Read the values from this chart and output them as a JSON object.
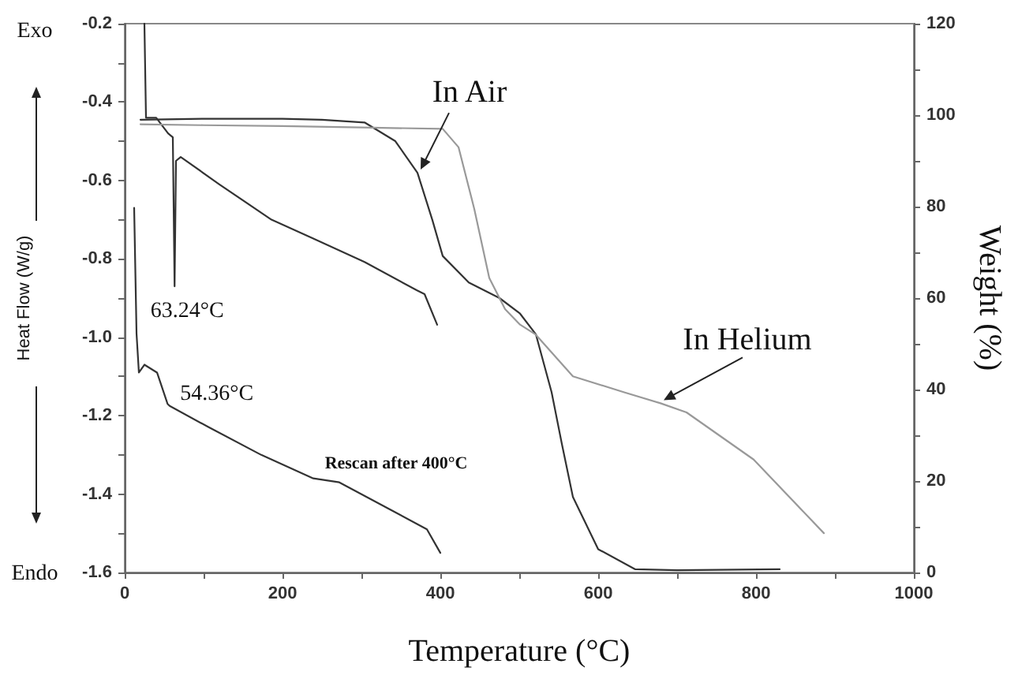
{
  "chart_data": {
    "type": "line",
    "xlabel": "Temperature (°C)",
    "ylabel": "Heat Flow (W/g)",
    "y2label": "Weight (%)",
    "annotations": [
      "Exo",
      "Endo",
      {
        "text": "63.24°C",
        "x": 63.24,
        "y": -0.87
      },
      {
        "text": "54.36°C",
        "x": 54.36,
        "y": -1.17
      }
    ],
    "series": [
      {
        "color": "#333333",
        "x": [
          25,
          27,
          40,
          55,
          61,
          63.24,
          65,
          71,
          120,
          186,
          239,
          304,
          370,
          380,
          396
        ],
        "values": [
          -0.2,
          -0.44,
          -0.44,
          -0.48,
          -0.49,
          -0.87,
          -0.55,
          -0.54,
          -0.61,
          -0.7,
          -0.748,
          -0.808,
          -0.88,
          -0.89,
          -0.968
        ]
      },
      {
        "name": "Rescan after 400°C",
        "color": "#333333",
        "x": [
          12,
          15,
          18,
          25,
          41,
          54.36,
          57,
          107,
          173,
          239,
          272,
          337,
          383,
          400
        ],
        "values": [
          -0.67,
          -0.99,
          -1.09,
          -1.07,
          -1.09,
          -1.17,
          -1.175,
          -1.23,
          -1.3,
          -1.36,
          -1.37,
          -1.44,
          -1.49,
          -1.55
        ]
      },
      {
        "name": "In Air",
        "color": "#333333",
        "axis": "y2",
        "x": [
          20,
          100,
          200,
          250,
          304,
          343,
          371,
          390,
          403,
          436,
          475,
          501,
          521,
          541,
          554,
          568,
          600,
          647,
          700,
          830
        ],
        "values": [
          99,
          99.2,
          99.2,
          99,
          98.4,
          94.3,
          87.4,
          77,
          69.2,
          63.4,
          60,
          56.6,
          52.1,
          39.4,
          28.1,
          16.5,
          5.1,
          0.7,
          0.5,
          0.7
        ]
      },
      {
        "name": "In Helium",
        "color": "#999999",
        "axis": "y2",
        "x": [
          20,
          100,
          200,
          300,
          403,
          423,
          443,
          462,
          482,
          501,
          521,
          568,
          633,
          679,
          712,
          797,
          886
        ],
        "values": [
          98,
          97.8,
          97.6,
          97.3,
          97,
          93,
          79.5,
          64.4,
          57.6,
          54.2,
          52,
          42.9,
          39.4,
          37,
          35,
          24.7,
          8.6
        ]
      }
    ],
    "xlim": [
      0,
      1000
    ],
    "xticks": [
      0,
      {
        "value": 100,
        "label": null
      },
      200,
      {
        "value": 300,
        "label": null
      },
      400,
      {
        "value": 500,
        "label": null
      },
      600,
      {
        "value": 700,
        "label": null
      },
      800,
      {
        "value": 900,
        "label": null
      },
      1000
    ],
    "ylim": [
      -1.6,
      -0.2
    ],
    "yticks": [
      {
        "value": -1.6,
        "label": "-1.6"
      },
      {
        "value": -1.5,
        "label": null
      },
      {
        "value": -1.4,
        "label": "-1.4"
      },
      {
        "value": -1.3,
        "label": null
      },
      {
        "value": -1.2,
        "label": "-1.2"
      },
      {
        "value": -1.1,
        "label": null
      },
      {
        "value": -1,
        "label": "-1.0"
      },
      {
        "value": -0.9,
        "label": null
      },
      {
        "value": -0.8,
        "label": "-0.8"
      },
      {
        "value": -0.7,
        "label": null
      },
      {
        "value": -0.6,
        "label": "-0.6"
      },
      {
        "value": -0.5,
        "label": null
      },
      {
        "value": -0.4,
        "label": "-0.4"
      },
      {
        "value": -0.3,
        "label": null
      },
      {
        "value": -0.2,
        "label": "-0.2"
      }
    ],
    "y2lim": [
      0,
      120
    ],
    "y2ticks": [
      0,
      {
        "value": 10,
        "label": null
      },
      20,
      {
        "value": 30,
        "label": null
      },
      40,
      {
        "value": 50,
        "label": null
      },
      60,
      {
        "value": 70,
        "label": null
      },
      80,
      {
        "value": 90,
        "label": null
      },
      100,
      {
        "value": 110,
        "label": null
      },
      120
    ],
    "grid": false,
    "legend": false,
    "marker": "none"
  }
}
